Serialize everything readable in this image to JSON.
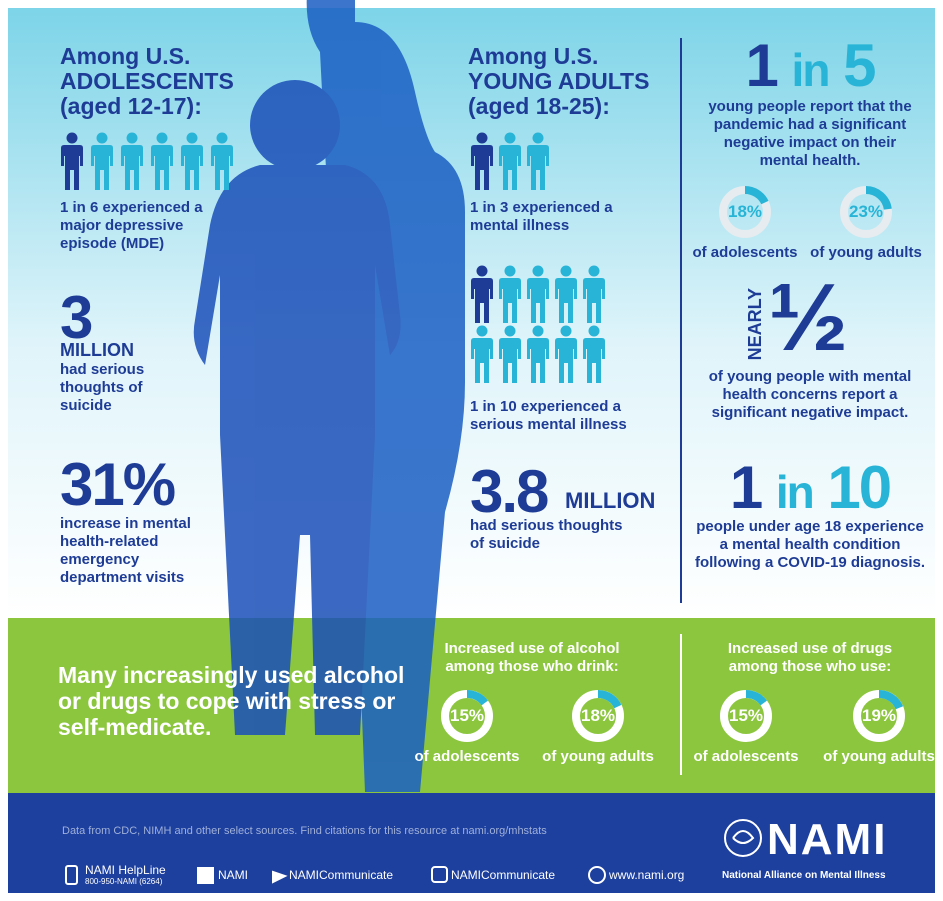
{
  "adolescents": {
    "heading": "Among U.S. ADOLESCENTS (aged 12-17):",
    "stats": [
      {
        "emphasis": "1 in 6",
        "text": "experienced a major depressive episode (MDE)"
      }
    ],
    "figures": [
      {
        "figure": "3",
        "unit": "MILLION",
        "text": "had serious thoughts of suicide"
      },
      {
        "figure": "31%",
        "text": "increase in mental health-related emergency department visits"
      }
    ]
  },
  "young_adults": {
    "heading": "Among U.S. YOUNG ADULTS (aged 18-25):",
    "stats": [
      {
        "emphasis": "1 in 3",
        "text": "experienced a mental illness"
      },
      {
        "emphasis": "1 in 10",
        "text": "experienced a serious mental illness"
      }
    ],
    "figures": [
      {
        "figure": "3.8",
        "unit": "MILLION",
        "text": "had serious thoughts of suicide"
      }
    ]
  },
  "pandemic": {
    "ratio": [
      "1",
      "in",
      "5"
    ],
    "text": "young people report that the pandemic had a significant negative impact on their mental health.",
    "rings": [
      {
        "value": 18,
        "label": "18%",
        "caption": "of adolescents"
      },
      {
        "value": 23,
        "label": "23%",
        "caption": "of young adults"
      }
    ]
  },
  "concerns": {
    "prefix": "NEARLY",
    "figure": "½",
    "text": "of young people with mental health concerns report a significant negative impact."
  },
  "covid": {
    "ratio": [
      "1",
      "in",
      "10"
    ],
    "text": "people under age 18 experience a mental health condition following a COVID-19 diagnosis."
  },
  "substance": {
    "statement": "Many increasingly used alcohol or drugs to cope with stress or self-medicate.",
    "groups": [
      {
        "title": "Increased use of alcohol among those who drink:",
        "rings": [
          {
            "value": 15,
            "label": "15%",
            "caption": "of adolescents"
          },
          {
            "value": 18,
            "label": "18%",
            "caption": "of young adults"
          }
        ]
      },
      {
        "title": "Increased use of drugs among those who use:",
        "rings": [
          {
            "value": 15,
            "label": "15%",
            "caption": "of adolescents"
          },
          {
            "value": 19,
            "label": "19%",
            "caption": "of young adults"
          }
        ]
      }
    ]
  },
  "footer": {
    "source": "Data from CDC, NIMH and other select sources. Find citations for this resource at nami.org/mhstats",
    "helpline": {
      "name": "NAMI HelpLine",
      "number": "800-950-NAMI (6264)"
    },
    "links": [
      "NAMI",
      "NAMICommunicate",
      "NAMICommunicate",
      "www.nami.org"
    ],
    "logo": {
      "name": "NAMI",
      "tagline": "National Alliance on Mental Illness"
    }
  }
}
